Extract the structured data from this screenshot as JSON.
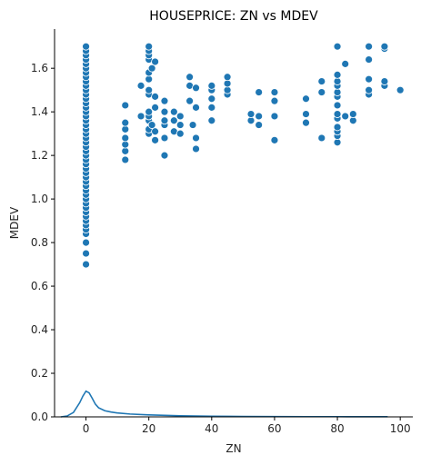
{
  "chart_data": {
    "type": "scatter",
    "title": "HOUSEPRICE: ZN vs MDEV",
    "xlabel": "ZN",
    "ylabel": "MDEV",
    "xlim": [
      -10,
      104
    ],
    "ylim": [
      0,
      1.78
    ],
    "xticks": [
      0,
      20,
      40,
      60,
      80,
      100
    ],
    "yticks": [
      0.0,
      0.2,
      0.4,
      0.6,
      0.8,
      1.0,
      1.2,
      1.4,
      1.6
    ],
    "ytick_labels": [
      "0.0",
      "0.2",
      "0.4",
      "0.6",
      "0.8",
      "1.0",
      "1.2",
      "1.4",
      "1.6"
    ],
    "grid": false,
    "legend": "none",
    "point_color": "#1f77b4",
    "kde_color": "#1f77b4",
    "points": [
      [
        0,
        0.7
      ],
      [
        0,
        0.75
      ],
      [
        0,
        0.8
      ],
      [
        0,
        0.84
      ],
      [
        0,
        0.86
      ],
      [
        0,
        0.88
      ],
      [
        0,
        0.9
      ],
      [
        0,
        0.92
      ],
      [
        0,
        0.94
      ],
      [
        0,
        0.96
      ],
      [
        0,
        0.98
      ],
      [
        0,
        1.0
      ],
      [
        0,
        1.02
      ],
      [
        0,
        1.04
      ],
      [
        0,
        1.06
      ],
      [
        0,
        1.08
      ],
      [
        0,
        1.1
      ],
      [
        0,
        1.12
      ],
      [
        0,
        1.14
      ],
      [
        0,
        1.16
      ],
      [
        0,
        1.18
      ],
      [
        0,
        1.2
      ],
      [
        0,
        1.22
      ],
      [
        0,
        1.24
      ],
      [
        0,
        1.26
      ],
      [
        0,
        1.28
      ],
      [
        0,
        1.3
      ],
      [
        0,
        1.32
      ],
      [
        0,
        1.34
      ],
      [
        0,
        1.36
      ],
      [
        0,
        1.38
      ],
      [
        0,
        1.4
      ],
      [
        0,
        1.42
      ],
      [
        0,
        1.44
      ],
      [
        0,
        1.46
      ],
      [
        0,
        1.48
      ],
      [
        0,
        1.5
      ],
      [
        0,
        1.52
      ],
      [
        0,
        1.54
      ],
      [
        0,
        1.56
      ],
      [
        0,
        1.58
      ],
      [
        0,
        1.6
      ],
      [
        0,
        1.62
      ],
      [
        0,
        1.64
      ],
      [
        0,
        1.66
      ],
      [
        0,
        1.68
      ],
      [
        0,
        1.7
      ],
      [
        12.5,
        1.18
      ],
      [
        12.5,
        1.22
      ],
      [
        12.5,
        1.25
      ],
      [
        12.5,
        1.28
      ],
      [
        12.5,
        1.32
      ],
      [
        12.5,
        1.35
      ],
      [
        12.5,
        1.43
      ],
      [
        17.5,
        1.38
      ],
      [
        17.5,
        1.52
      ],
      [
        20,
        1.3
      ],
      [
        20,
        1.32
      ],
      [
        20,
        1.36
      ],
      [
        20,
        1.38
      ],
      [
        20,
        1.4
      ],
      [
        20,
        1.48
      ],
      [
        20,
        1.5
      ],
      [
        20,
        1.55
      ],
      [
        20,
        1.58
      ],
      [
        20,
        1.64
      ],
      [
        20,
        1.66
      ],
      [
        20,
        1.68
      ],
      [
        20,
        1.7
      ],
      [
        21,
        1.34
      ],
      [
        21,
        1.6
      ],
      [
        22,
        1.27
      ],
      [
        22,
        1.31
      ],
      [
        22,
        1.42
      ],
      [
        22,
        1.47
      ],
      [
        22,
        1.63
      ],
      [
        25,
        1.2
      ],
      [
        25,
        1.28
      ],
      [
        25,
        1.34
      ],
      [
        25,
        1.36
      ],
      [
        25,
        1.4
      ],
      [
        25,
        1.45
      ],
      [
        28,
        1.31
      ],
      [
        28,
        1.36
      ],
      [
        28,
        1.4
      ],
      [
        30,
        1.3
      ],
      [
        30,
        1.34
      ],
      [
        30,
        1.38
      ],
      [
        33,
        1.45
      ],
      [
        33,
        1.52
      ],
      [
        33,
        1.56
      ],
      [
        34,
        1.34
      ],
      [
        35,
        1.23
      ],
      [
        35,
        1.28
      ],
      [
        35,
        1.42
      ],
      [
        35,
        1.51
      ],
      [
        40,
        1.36
      ],
      [
        40,
        1.42
      ],
      [
        40,
        1.46
      ],
      [
        40,
        1.5
      ],
      [
        40,
        1.52
      ],
      [
        45,
        1.48
      ],
      [
        45,
        1.5
      ],
      [
        45,
        1.53
      ],
      [
        45,
        1.56
      ],
      [
        52.5,
        1.36
      ],
      [
        52.5,
        1.39
      ],
      [
        55,
        1.34
      ],
      [
        55,
        1.38
      ],
      [
        55,
        1.49
      ],
      [
        60,
        1.27
      ],
      [
        60,
        1.38
      ],
      [
        60,
        1.45
      ],
      [
        60,
        1.49
      ],
      [
        70,
        1.35
      ],
      [
        70,
        1.39
      ],
      [
        70,
        1.46
      ],
      [
        75,
        1.28
      ],
      [
        75,
        1.49
      ],
      [
        75,
        1.54
      ],
      [
        80,
        1.26
      ],
      [
        80,
        1.29
      ],
      [
        80,
        1.31
      ],
      [
        80,
        1.33
      ],
      [
        80,
        1.37
      ],
      [
        80,
        1.39
      ],
      [
        80,
        1.43
      ],
      [
        80,
        1.47
      ],
      [
        80,
        1.49
      ],
      [
        80,
        1.52
      ],
      [
        80,
        1.54
      ],
      [
        80,
        1.57
      ],
      [
        80,
        1.7
      ],
      [
        82.5,
        1.38
      ],
      [
        82.5,
        1.62
      ],
      [
        85,
        1.36
      ],
      [
        85,
        1.39
      ],
      [
        90,
        1.48
      ],
      [
        90,
        1.5
      ],
      [
        90,
        1.55
      ],
      [
        90,
        1.64
      ],
      [
        90,
        1.7
      ],
      [
        95,
        1.52
      ],
      [
        95,
        1.54
      ],
      [
        95,
        1.69
      ],
      [
        95,
        1.7
      ],
      [
        100,
        1.5
      ]
    ],
    "kde": {
      "x": [
        -8,
        -6,
        -4,
        -2,
        -1,
        0,
        1,
        2,
        3,
        4,
        6,
        8,
        10,
        14,
        20,
        30,
        40,
        50,
        60,
        70,
        80,
        90,
        96
      ],
      "y": [
        0.0,
        0.004,
        0.02,
        0.065,
        0.095,
        0.118,
        0.11,
        0.085,
        0.058,
        0.042,
        0.028,
        0.022,
        0.018,
        0.013,
        0.009,
        0.005,
        0.003,
        0.002,
        0.0015,
        0.001,
        0.001,
        0.0008,
        0.0006
      ]
    }
  }
}
